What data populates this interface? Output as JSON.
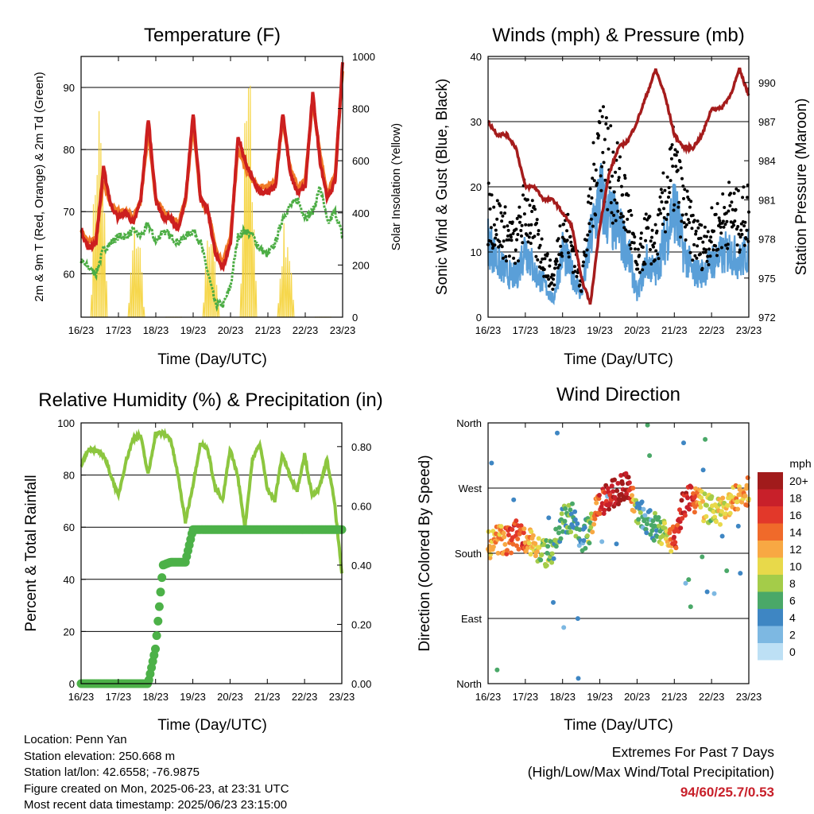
{
  "info": {
    "location": "Location: Penn Yan",
    "elevation": "Station elevation: 250.668 m",
    "latlon": "Station lat/lon: 42.6558; -76.9875",
    "created": "Figure created on Mon, 2025-06-23, at 23:31 UTC",
    "recent": "Most recent data timestamp: 2025/06/23 23:15:00"
  },
  "extremes": {
    "title": "Extremes For Past 7 Days",
    "subtitle": "(High/Low/Max Wind/Total Precipitation)",
    "values": "94/60/25.7/0.53"
  },
  "colors": {
    "temp2m": "#cc1f1f",
    "temp9m": "#f07a28",
    "dewpoint": "#4cad44",
    "solar": "#f5d33a",
    "gust": "#000000",
    "sonic": "#5a9fd8",
    "pressure": "#a51c1c",
    "rh": "#8cc63f",
    "precip": "#4cb148"
  },
  "chart_data": [
    {
      "type": "line",
      "title": "Temperature (F)",
      "xlabel": "Time (Day/UTC)",
      "ylabel": "2m & 9m T (Red, Orange) & 2m Td (Green)",
      "ylabel_right": "Solar Insolation (Yellow)",
      "xticks": [
        "16/23",
        "17/23",
        "18/23",
        "19/23",
        "20/23",
        "21/23",
        "22/23",
        "23/23"
      ],
      "ylim": [
        53,
        95
      ],
      "yticks": [
        60,
        70,
        80,
        90
      ],
      "ylim_right": [
        0,
        1000
      ],
      "yticks_right": [
        0,
        200,
        400,
        600,
        800,
        1000
      ],
      "grid": true,
      "x": [
        0,
        0.2,
        0.4,
        0.6,
        0.8,
        1.0,
        1.2,
        1.4,
        1.6,
        1.8,
        2.0,
        2.2,
        2.4,
        2.6,
        2.8,
        3.0,
        3.2,
        3.4,
        3.6,
        3.8,
        4.0,
        4.2,
        4.4,
        4.6,
        4.8,
        5.0,
        5.2,
        5.4,
        5.6,
        5.8,
        6.0,
        6.2,
        6.4,
        6.6,
        6.8,
        7.0
      ],
      "series": [
        {
          "name": "2m T",
          "values": [
            67,
            64,
            65,
            77,
            71,
            69,
            70,
            68,
            72,
            85,
            72,
            69,
            69,
            67,
            72,
            86,
            72,
            70,
            63,
            61,
            65,
            82,
            78,
            75,
            73,
            73,
            74,
            86,
            76,
            73,
            74,
            89,
            78,
            72,
            75,
            94
          ]
        },
        {
          "name": "9m T",
          "values": [
            67,
            65,
            66,
            75,
            71,
            70,
            70,
            69,
            72,
            83,
            72,
            70,
            69,
            68,
            72,
            84,
            72,
            70,
            64,
            62,
            66,
            80,
            77,
            75,
            74,
            74,
            75,
            85,
            77,
            74,
            75,
            88,
            79,
            73,
            76,
            93
          ]
        },
        {
          "name": "2m Td",
          "values": [
            62,
            61,
            60,
            64,
            65,
            66,
            66,
            67,
            66,
            68,
            65,
            67,
            66,
            65,
            66,
            67,
            65,
            60,
            55,
            55,
            58,
            66,
            67,
            66,
            64,
            63,
            65,
            69,
            71,
            72,
            69,
            70,
            74,
            68,
            70,
            66
          ]
        },
        {
          "name": "Solar",
          "values": [
            0,
            400,
            900,
            400,
            0,
            400,
            950,
            400,
            0,
            400,
            1000,
            400,
            0,
            400,
            1000,
            400,
            0,
            400,
            1000,
            400,
            0,
            400,
            1000,
            400,
            0,
            400,
            950,
            400,
            0,
            400,
            900,
            400,
            0,
            400,
            1000,
            400
          ]
        }
      ]
    },
    {
      "type": "line",
      "title": "Winds (mph) & Pressure (mb)",
      "xlabel": "Time (Day/UTC)",
      "ylabel": "Sonic Wind & Gust (Blue, Black)",
      "ylabel_right": "Station Pressure (Maroon)",
      "xticks": [
        "16/23",
        "17/23",
        "18/23",
        "19/23",
        "20/23",
        "21/23",
        "22/23",
        "23/23"
      ],
      "ylim": [
        0,
        40
      ],
      "yticks": [
        0,
        10,
        20,
        30,
        40
      ],
      "ylim_right": [
        972,
        992
      ],
      "yticks_right": [
        972,
        975,
        978,
        981,
        984,
        987,
        990
      ],
      "grid": true,
      "x": [
        0,
        0.25,
        0.5,
        0.75,
        1.0,
        1.25,
        1.5,
        1.75,
        2.0,
        2.25,
        2.5,
        2.75,
        3.0,
        3.25,
        3.5,
        3.75,
        4.0,
        4.25,
        4.5,
        4.75,
        5.0,
        5.25,
        5.5,
        5.75,
        6.0,
        6.25,
        6.5,
        6.75,
        7.0
      ],
      "series": [
        {
          "name": "Gust",
          "values": [
            18,
            16,
            14,
            12,
            19,
            14,
            10,
            6,
            16,
            12,
            6,
            18,
            32,
            25,
            22,
            18,
            8,
            14,
            12,
            20,
            25,
            18,
            14,
            12,
            14,
            16,
            18,
            16,
            18
          ]
        },
        {
          "name": "Sonic Wind",
          "values": [
            14,
            10,
            8,
            7,
            13,
            8,
            6,
            3,
            12,
            8,
            4,
            14,
            22,
            18,
            16,
            12,
            4,
            10,
            8,
            14,
            20,
            12,
            8,
            8,
            10,
            11,
            12,
            10,
            12
          ]
        },
        {
          "name": "Pressure",
          "values": [
            987,
            986,
            986,
            985,
            982,
            982,
            981,
            981,
            980,
            979,
            975,
            973,
            979,
            983,
            985,
            985.5,
            987,
            989,
            991,
            989,
            986,
            985,
            985,
            986,
            988,
            988,
            989,
            991,
            989
          ]
        }
      ]
    },
    {
      "type": "line",
      "title": "Relative Humidity (%) & Precipitation (in)",
      "xlabel": "Time (Day/UTC)",
      "ylabel": "Percent & Total Rainfall",
      "xticks": [
        "16/23",
        "17/23",
        "18/23",
        "19/23",
        "20/23",
        "21/23",
        "22/23",
        "23/23"
      ],
      "ylim": [
        0,
        100
      ],
      "yticks": [
        0,
        20,
        40,
        60,
        80,
        100
      ],
      "ylim_right": [
        0,
        0.88
      ],
      "yticks_right": [
        "0.00",
        "0.20",
        "0.40",
        "0.60",
        "0.80"
      ],
      "grid": true,
      "x": [
        0,
        0.2,
        0.4,
        0.6,
        0.8,
        1.0,
        1.2,
        1.4,
        1.6,
        1.8,
        2.0,
        2.2,
        2.4,
        2.6,
        2.8,
        3.0,
        3.2,
        3.4,
        3.6,
        3.8,
        4.0,
        4.2,
        4.4,
        4.6,
        4.8,
        5.0,
        5.2,
        5.4,
        5.6,
        5.8,
        6.0,
        6.2,
        6.4,
        6.6,
        6.8,
        7.0
      ],
      "series": [
        {
          "name": "RH",
          "values": [
            84,
            90,
            89,
            88,
            80,
            72,
            85,
            94,
            95,
            80,
            96,
            96,
            94,
            80,
            62,
            76,
            92,
            90,
            75,
            70,
            90,
            80,
            60,
            86,
            92,
            75,
            70,
            88,
            80,
            74,
            88,
            72,
            75,
            86,
            70,
            42
          ]
        },
        {
          "name": "Precip",
          "values": [
            0,
            0,
            0,
            0,
            0,
            0,
            0,
            0,
            0,
            0,
            0.12,
            0.4,
            0.41,
            0.41,
            0.41,
            0.52,
            0.52,
            0.52,
            0.52,
            0.52,
            0.52,
            0.52,
            0.52,
            0.52,
            0.52,
            0.52,
            0.52,
            0.52,
            0.52,
            0.52,
            0.52,
            0.52,
            0.52,
            0.52,
            0.52,
            0.52
          ]
        }
      ]
    },
    {
      "type": "scatter",
      "title": "Wind Direction",
      "xlabel": "Time (Day/UTC)",
      "ylabel": "Direction (Colored By Speed)",
      "xticks": [
        "16/23",
        "17/23",
        "18/23",
        "19/23",
        "20/23",
        "21/23",
        "22/23",
        "23/23"
      ],
      "yticks": [
        "North",
        "East",
        "South",
        "West",
        "North"
      ],
      "ylim": [
        0,
        360
      ],
      "grid": true,
      "colorbar": {
        "unit": "mph",
        "labels": [
          "20+",
          "18",
          "16",
          "14",
          "12",
          "10",
          "8",
          "6",
          "4",
          "2",
          "0"
        ],
        "colors": [
          "#a11b1b",
          "#c8202a",
          "#e2382a",
          "#f06a2a",
          "#f8a843",
          "#e8d94a",
          "#a4cc49",
          "#4aa868",
          "#3e86c3",
          "#7db8e2",
          "#bde0f5"
        ]
      },
      "x": [
        0,
        0.25,
        0.5,
        0.75,
        1.0,
        1.25,
        1.5,
        1.75,
        2.0,
        2.25,
        2.5,
        2.75,
        3.0,
        3.25,
        3.5,
        3.75,
        4.0,
        4.25,
        4.5,
        4.75,
        5.0,
        5.25,
        5.5,
        5.75,
        6.0,
        6.25,
        6.5,
        6.75,
        7.0
      ],
      "series": [
        {
          "name": "Direction",
          "values": [
            190,
            200,
            195,
            205,
            200,
            190,
            180,
            185,
            225,
            230,
            200,
            215,
            250,
            260,
            268,
            275,
            240,
            225,
            215,
            210,
            195,
            250,
            258,
            245,
            240,
            235,
            252,
            260,
            265
          ],
          "speed": [
            12,
            12,
            14,
            16,
            14,
            10,
            8,
            6,
            6,
            6,
            4,
            8,
            16,
            18,
            20,
            20,
            6,
            4,
            6,
            8,
            16,
            18,
            16,
            10,
            8,
            10,
            12,
            12,
            12
          ]
        }
      ]
    }
  ]
}
